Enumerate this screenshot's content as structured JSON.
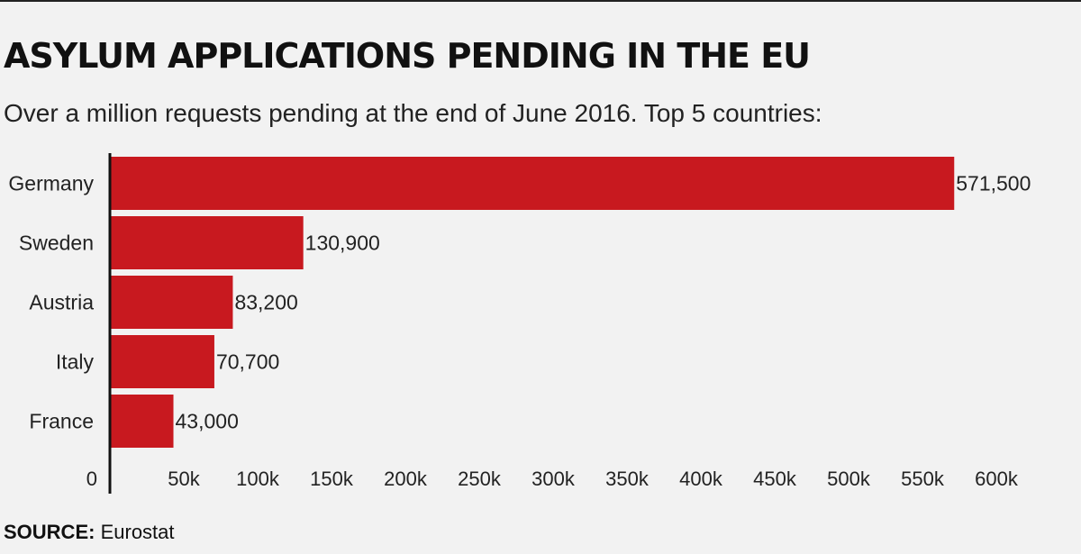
{
  "title": "ASYLUM APPLICATIONS PENDING IN THE EU",
  "subtitle": "Over a million requests pending at the end of June 2016. Top 5 countries:",
  "source": {
    "label": "SOURCE:",
    "text": "Eurostat"
  },
  "colors": {
    "bar": "#c8191f",
    "axis": "#111111",
    "background": "#f2f2f2"
  },
  "chart_data": {
    "type": "bar",
    "orientation": "horizontal",
    "categories": [
      "Germany",
      "Sweden",
      "Austria",
      "Italy",
      "France"
    ],
    "values": [
      571500,
      130900,
      83200,
      70700,
      43000
    ],
    "value_labels": [
      "571,500",
      "130,900",
      "83,200",
      "70,700",
      "43,000"
    ],
    "xticks": [
      0,
      50000,
      100000,
      150000,
      200000,
      250000,
      300000,
      350000,
      400000,
      450000,
      500000,
      550000,
      600000
    ],
    "xtick_labels": [
      "0",
      "50k",
      "100k",
      "150k",
      "200k",
      "250k",
      "300k",
      "350k",
      "400k",
      "450k",
      "500k",
      "550k",
      "600k"
    ],
    "xlim": [
      0,
      600000
    ],
    "grid": false,
    "legend": false
  }
}
